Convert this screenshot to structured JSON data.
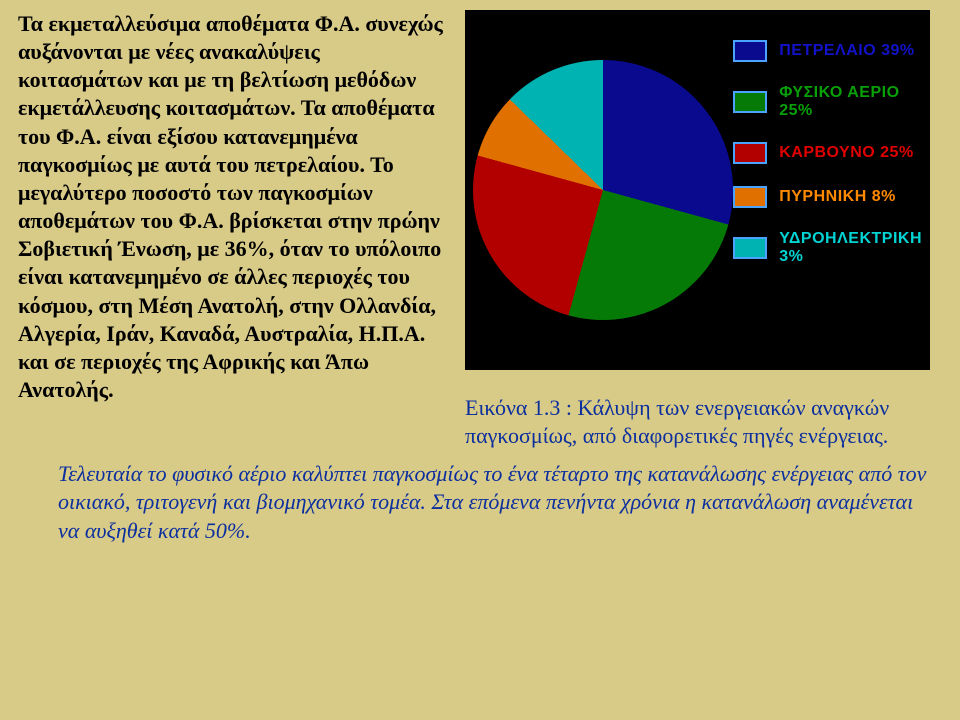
{
  "body_text": "Τα εκμεταλλεύσιμα αποθέματα Φ.Α. συνεχώς αυξάνονται με νέες ανακαλύψεις κοιτασμάτων  και με τη βελτίωση μεθόδων εκμετάλλευσης κοιτασμάτων. Τα αποθέματα του Φ.Α. είναι εξίσου κατανεμημένα παγκοσμίως με αυτά του πετρελαίου. Το μεγαλύτερο ποσοστό των παγκοσμίων αποθεμάτων του Φ.Α. βρίσκεται στην πρώην Σοβιετική Ένωση, με 36%, όταν το υπόλοιπο είναι κατανεμημένο σε άλλες περιοχές του κόσμου, στη Μέση Ανατολή, στην Ολλανδία, Αλγερία, Ιράν, Καναδά, Αυστραλία, Η.Π.Α. και σε περιοχές της Αφρικής και Άπω Ανατολής.",
  "caption": "Εικόνα 1.3 : Κάλυψη των ενεργειακών αναγκών παγκοσμίως, από διαφορετικές πηγές ενέργειας.",
  "footer_text": "Τελευταία το φυσικό αέριο καλύπτει παγκοσμίως το ένα τέταρτο της κατανάλωσης ενέργειας από τον οικιακό, τριτογενή και βιομηχανικό τομέα. Στα επόμενα πενήντα χρόνια η κατανάλωση αναμένεται να αυξηθεί κατά 50%.",
  "chart": {
    "type": "pie",
    "background_color": "#000000",
    "slices": [
      {
        "name": "petrelaio",
        "label": "ΠΕΤΡΕΛΑΙΟ 39%",
        "value": 39,
        "color": "#0a0a8f",
        "label_color": "#1212c9"
      },
      {
        "name": "fysiko_aerio",
        "label": "ΦΥΣΙΚΟ ΑΕΡΙΟ 25%",
        "value": 25,
        "color": "#067a06",
        "label_color": "#07a007"
      },
      {
        "name": "karvouno",
        "label": "ΚΑΡΒΟΥΝΟ 25%",
        "value": 25,
        "color": "#b20000",
        "label_color": "#e10000"
      },
      {
        "name": "pyriniki",
        "label": "ΠΥΡΗΝΙΚΗ 8%",
        "value": 8,
        "color": "#e07000",
        "label_color": "#ff8a00"
      },
      {
        "name": "ydro",
        "label": "ΥΔΡΟΗΛΕΚΤΡΙΚΗ 3%",
        "value": 3,
        "color": "#00b3b3",
        "label_color": "#00d4d4"
      }
    ],
    "legend_swatch_border": "#4aa3ff",
    "start_angle_deg": -35
  }
}
